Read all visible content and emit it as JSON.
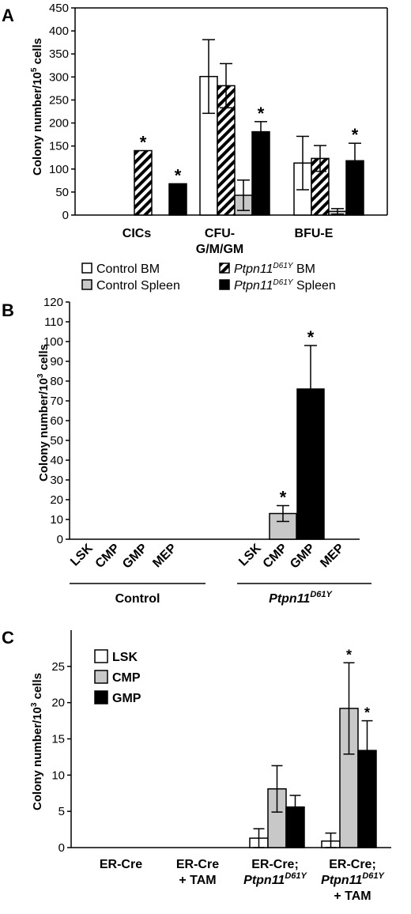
{
  "chart_data": [
    {
      "panel": "A",
      "type": "bar",
      "ylabel_main": "Colony number/10",
      "ylabel_exp": "5",
      "ylabel_tail": " cells",
      "ylim": [
        0,
        450
      ],
      "yticks": [
        0,
        50,
        100,
        150,
        200,
        250,
        300,
        350,
        400,
        450
      ],
      "categories": [
        "CICs",
        "CFU-G/M/GM",
        "BFU-E"
      ],
      "category_lines": [
        [
          "CICs"
        ],
        [
          "CFU-",
          "G/M/GM"
        ],
        [
          "BFU-E"
        ]
      ],
      "series": [
        {
          "name_main": "Control",
          "name_tail": " BM",
          "name_italic": "",
          "name_sup": "",
          "fill": "#ffffff",
          "values": [
            0,
            301,
            113
          ],
          "errors": [
            0,
            80,
            58
          ]
        },
        {
          "name_main": "",
          "name_tail": " BM",
          "name_italic": "Ptpn11",
          "name_sup": "D61Y",
          "fill": "hatch",
          "values": [
            140,
            281,
            123
          ],
          "errors": [
            0,
            48,
            28
          ]
        },
        {
          "name_main": "Control",
          "name_tail": " Spleen",
          "name_italic": "",
          "name_sup": "",
          "fill": "#c8c8c8",
          "values": [
            0,
            43,
            8
          ],
          "errors": [
            0,
            33,
            6
          ]
        },
        {
          "name_main": "",
          "name_tail": " Spleen",
          "name_italic": "Ptpn11",
          "name_sup": "D61Y",
          "fill": "#000000",
          "values": [
            68,
            181,
            118
          ],
          "errors": [
            0,
            22,
            38
          ]
        }
      ],
      "error_bars_upper_only": [
        [
          0,
          1,
          0,
          1
        ],
        [
          0,
          0,
          0,
          0
        ],
        [
          0,
          0,
          0,
          0
        ]
      ],
      "annotations": [
        "*",
        "*",
        "*",
        "*"
      ],
      "legend": "below"
    },
    {
      "panel": "B",
      "type": "bar",
      "ylabel_main": "Colony number/10",
      "ylabel_exp": "3",
      "ylabel_tail": " cells",
      "ylim": [
        0,
        120
      ],
      "yticks": [
        0,
        10,
        20,
        30,
        40,
        50,
        60,
        70,
        80,
        90,
        100,
        110,
        120
      ],
      "categories": [
        "LSK",
        "CMP",
        "GMP",
        "MEP",
        "LSK",
        "CMP",
        "GMP",
        "MEP"
      ],
      "fills": [
        "#ffffff",
        "#c8c8c8",
        "#000000",
        "#ffffff",
        "#ffffff",
        "#c8c8c8",
        "#000000",
        "#ffffff"
      ],
      "values": [
        0,
        0,
        0,
        0,
        0,
        13,
        76,
        0
      ],
      "errors": [
        0,
        0,
        0,
        0,
        0,
        4,
        22,
        0
      ],
      "groups": [
        {
          "label": "Control",
          "italic": "",
          "sup": ""
        },
        {
          "label": "",
          "italic": "Ptpn11",
          "sup": "D61Y"
        }
      ],
      "annotations": [
        "*",
        "*"
      ]
    },
    {
      "panel": "C",
      "type": "bar",
      "ylabel_main": "Colony number/10",
      "ylabel_exp": "3",
      "ylabel_tail": " cells",
      "ylim": [
        0,
        30
      ],
      "yticks": [
        0,
        5,
        10,
        15,
        20,
        25
      ],
      "categories": [
        "ER-Cre",
        "ER-Cre + TAM",
        "ER-Cre; Ptpn11D61Y",
        "ER-Cre; Ptpn11D61Y + TAM"
      ],
      "category_lines": [
        [
          {
            "t": "ER-Cre"
          }
        ],
        [
          {
            "t": "ER-Cre"
          },
          {
            "t": "+ TAM"
          }
        ],
        [
          {
            "t": "ER-Cre;"
          },
          {
            "italic": "Ptpn11",
            "sup": "D61Y"
          }
        ],
        [
          {
            "t": "ER-Cre;"
          },
          {
            "italic": "Ptpn11",
            "sup": "D61Y"
          },
          {
            "t": "+ TAM"
          }
        ]
      ],
      "series": [
        {
          "name": "LSK",
          "fill": "#ffffff",
          "values": [
            0,
            0,
            1.3,
            0.9
          ],
          "errors": [
            0,
            0,
            1.3,
            1.1
          ]
        },
        {
          "name": "CMP",
          "fill": "#c8c8c8",
          "values": [
            0,
            0,
            8.1,
            19.2
          ],
          "errors": [
            0,
            0,
            3.2,
            6.3
          ]
        },
        {
          "name": "GMP",
          "fill": "#000000",
          "values": [
            0,
            0,
            5.6,
            13.4
          ],
          "errors": [
            0,
            0,
            1.6,
            4.1
          ]
        }
      ],
      "annotations": [
        "*",
        "*"
      ],
      "legend": "top-left"
    }
  ],
  "panel_labels": [
    "A",
    "B",
    "C"
  ]
}
